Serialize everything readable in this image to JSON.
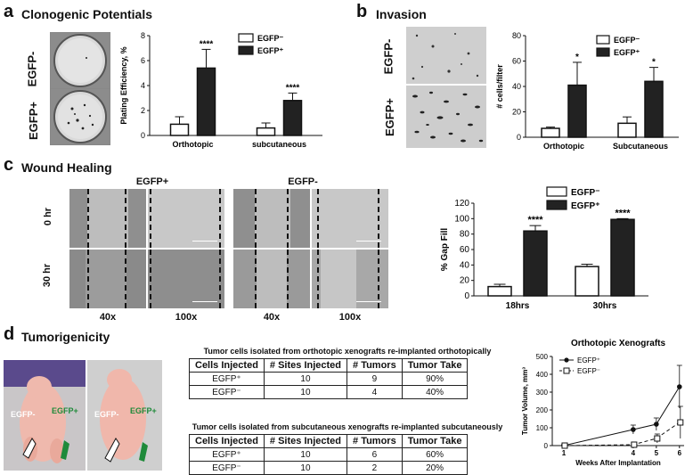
{
  "panels": {
    "a": {
      "letter": "a",
      "title": "Clonogenic Potentials",
      "row_labels": [
        "EGFP-",
        "EGFP+"
      ]
    },
    "b": {
      "letter": "b",
      "title": "Invasion",
      "row_labels": [
        "EGFP-",
        "EGFP+"
      ]
    },
    "c": {
      "letter": "c",
      "title": "Wound Healing",
      "group_labels": [
        "EGFP+",
        "EGFP-"
      ],
      "row_labels": [
        "0 hr",
        "30 hr"
      ],
      "mag_labels": [
        "40x",
        "100x",
        "40x",
        "100x"
      ]
    },
    "d": {
      "letter": "d",
      "title": "Tumorigenicity",
      "mouse_labels": [
        "EGFP-",
        "EGFP+",
        "EGFP-",
        "EGFP+"
      ]
    }
  },
  "tables": [
    {
      "caption": "Tumor cells isolated from orthotopic xenografts re-implanted orthotopically",
      "headers": [
        "Cells Injected",
        "# Sites Injected",
        "# Tumors",
        "Tumor Take"
      ],
      "rows": [
        [
          "EGFP⁺",
          "10",
          "9",
          "90%"
        ],
        [
          "EGFP⁻",
          "10",
          "4",
          "40%"
        ]
      ]
    },
    {
      "caption": "Tumor cells isolated from subcutaneous xenografts re-implanted subcutaneously",
      "headers": [
        "Cells Injected",
        "# Sites Injected",
        "# Tumors",
        "Tumor Take"
      ],
      "rows": [
        [
          "EGFP⁺",
          "10",
          "6",
          "60%"
        ],
        [
          "EGFP⁻",
          "10",
          "2",
          "20%"
        ]
      ]
    }
  ],
  "chart_data": [
    {
      "id": "a",
      "type": "bar",
      "ylabel": "Plating Efficiency, %",
      "ylim": [
        0,
        8
      ],
      "yticks": [
        "0",
        "2",
        "4",
        "6",
        "8"
      ],
      "categories": [
        "Orthotopic",
        "subcutaneous"
      ],
      "series": [
        {
          "name": "EGFP⁻",
          "values": [
            0.9,
            0.6
          ],
          "errors": [
            0.6,
            0.4
          ],
          "color": "#ffffff"
        },
        {
          "name": "EGFP⁺",
          "values": [
            5.4,
            2.8
          ],
          "errors": [
            1.5,
            0.6
          ],
          "color": "#222222"
        }
      ],
      "annotations": [
        {
          "category": 0,
          "series": 1,
          "text": "****"
        },
        {
          "category": 1,
          "series": 1,
          "text": "****"
        }
      ],
      "legend": "top-right"
    },
    {
      "id": "b",
      "type": "bar",
      "ylabel": "# cells/filter",
      "ylim": [
        0,
        80
      ],
      "yticks": [
        "0",
        "20",
        "40",
        "60",
        "80"
      ],
      "categories": [
        "Orthotopic",
        "Subcutaneous"
      ],
      "series": [
        {
          "name": "EGFP⁻",
          "values": [
            7,
            11
          ],
          "errors": [
            1,
            5
          ],
          "color": "#ffffff"
        },
        {
          "name": "EGFP⁺",
          "values": [
            41,
            44
          ],
          "errors": [
            18,
            11
          ],
          "color": "#222222"
        }
      ],
      "annotations": [
        {
          "category": 0,
          "series": 1,
          "text": "*"
        },
        {
          "category": 1,
          "series": 1,
          "text": "*"
        }
      ],
      "legend": "top-right"
    },
    {
      "id": "c",
      "type": "bar",
      "ylabel": "% Gap Fill",
      "ylim": [
        0,
        120
      ],
      "yticks": [
        "0",
        "20",
        "40",
        "60",
        "80",
        "100",
        "120"
      ],
      "categories": [
        "18hrs",
        "30hrs"
      ],
      "series": [
        {
          "name": "EGFP⁻",
          "values": [
            12,
            38
          ],
          "errors": [
            3,
            3
          ],
          "color": "#ffffff"
        },
        {
          "name": "EGFP⁺",
          "values": [
            84,
            99
          ],
          "errors": [
            7,
            1
          ],
          "color": "#222222"
        }
      ],
      "annotations": [
        {
          "category": 0,
          "series": 1,
          "text": "****"
        },
        {
          "category": 1,
          "series": 1,
          "text": "****"
        }
      ],
      "legend": "top-right"
    },
    {
      "id": "d",
      "type": "line",
      "title": "Orthotopic Xenografts",
      "xlabel": "Weeks After Implantation",
      "ylabel": "Tumor Volume, mm³",
      "xlim": [
        0.5,
        6.2
      ],
      "ylim": [
        0,
        500
      ],
      "xticks": [
        "1",
        "4",
        "5",
        "6"
      ],
      "yticks": [
        "0",
        "100",
        "200",
        "300",
        "400",
        "500"
      ],
      "x": [
        1,
        4,
        5,
        6
      ],
      "series": [
        {
          "name": "EGFP⁺",
          "values": [
            0,
            90,
            120,
            330
          ],
          "errors": [
            5,
            25,
            35,
            120
          ],
          "marker": "circle",
          "line": "solid"
        },
        {
          "name": "EGFP⁻",
          "values": [
            0,
            5,
            40,
            130
          ],
          "errors": [
            3,
            5,
            25,
            90
          ],
          "marker": "square-open",
          "line": "dashed"
        }
      ],
      "legend": "top-left"
    }
  ]
}
